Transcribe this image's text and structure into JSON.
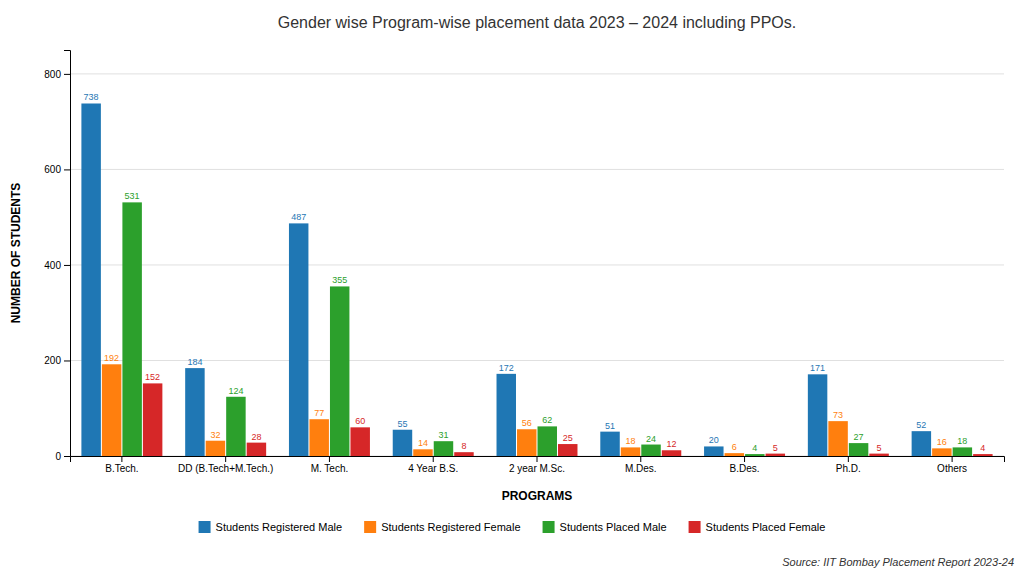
{
  "chart_data": {
    "type": "bar",
    "title": "Gender wise Program-wise placement data 2023 – 2024 including PPOs.",
    "xlabel": "PROGRAMS",
    "ylabel": "NUMBER OF STUDENTS",
    "annotations": [
      "Source: IIT Bombay Placement Report 2023-24"
    ],
    "categories": [
      "B.Tech.",
      "DD (B.Tech+M.Tech.)",
      "M. Tech.",
      "4 Year B.S.",
      "2 year M.Sc.",
      "M.Des.",
      "B.Des.",
      "Ph.D.",
      "Others"
    ],
    "series": [
      {
        "name": "Students Registered Male",
        "values": [
          738,
          184,
          487,
          55,
          172,
          51,
          20,
          171,
          52
        ]
      },
      {
        "name": "Students Registered Female",
        "values": [
          192,
          32,
          77,
          14,
          56,
          18,
          6,
          73,
          16
        ]
      },
      {
        "name": "Students Placed Male",
        "values": [
          531,
          124,
          355,
          31,
          62,
          24,
          4,
          27,
          18
        ]
      },
      {
        "name": "Students Placed Female",
        "values": [
          152,
          28,
          60,
          8,
          25,
          12,
          5,
          5,
          4
        ]
      }
    ],
    "ylim": [
      0,
      850
    ],
    "yticks": [
      0,
      200,
      400,
      600,
      800
    ],
    "grid": true,
    "legend": "bottom",
    "data_labels": true
  }
}
